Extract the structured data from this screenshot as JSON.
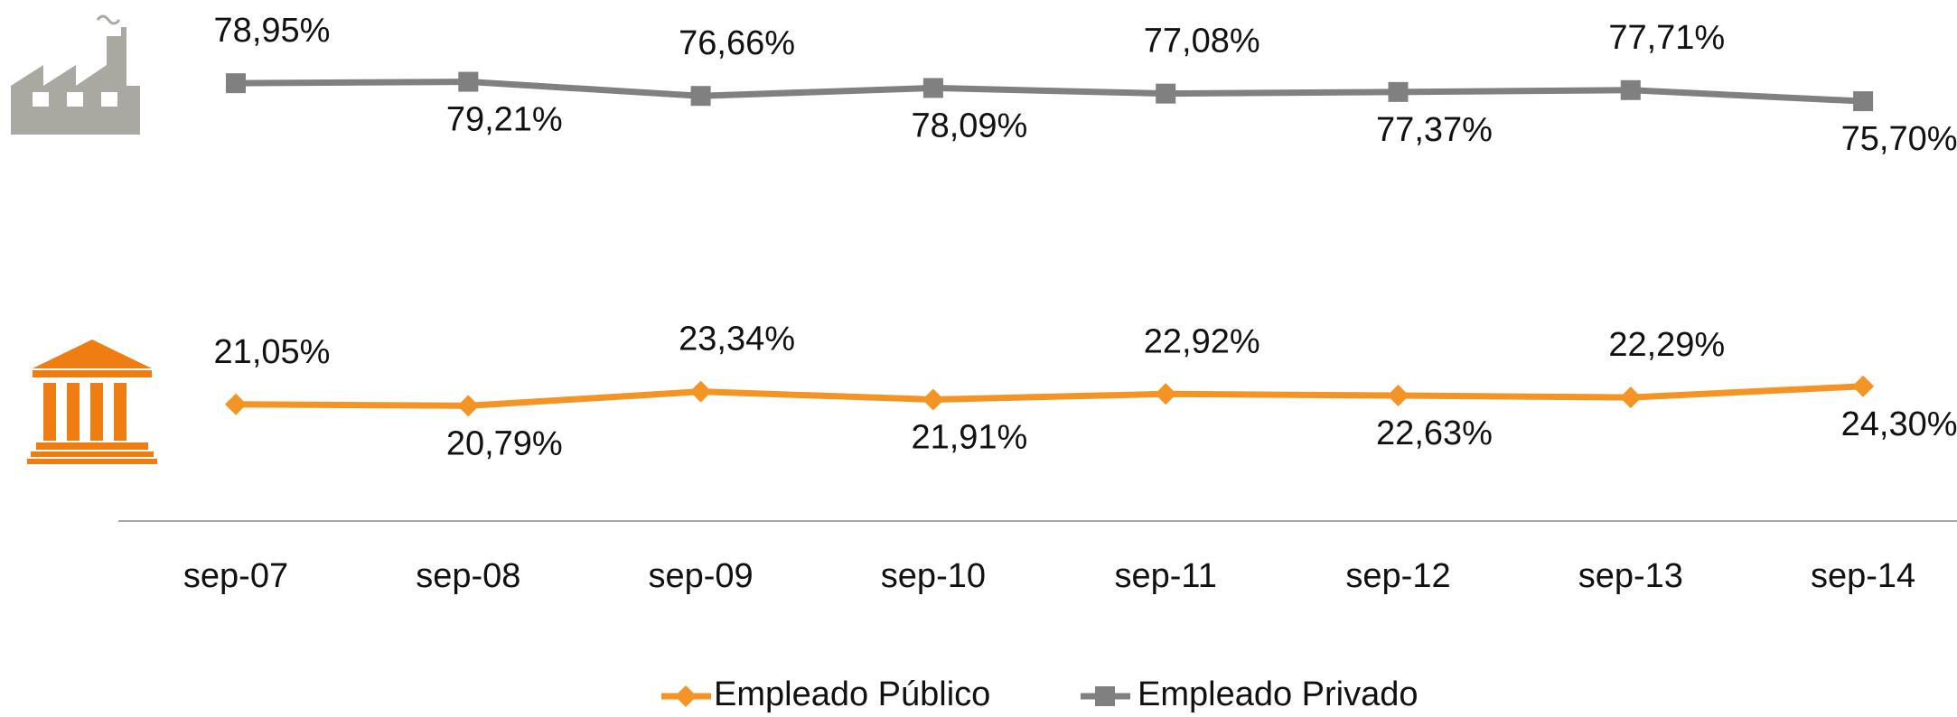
{
  "chart_data": {
    "type": "line",
    "categories": [
      "sep-07",
      "sep-08",
      "sep-09",
      "sep-10",
      "sep-11",
      "sep-12",
      "sep-13",
      "sep-14"
    ],
    "series": [
      {
        "name": "Empleado Público",
        "color": "#f39425",
        "marker": "diamond",
        "values": [
          21.05,
          20.79,
          23.34,
          21.91,
          22.92,
          22.63,
          22.29,
          24.3
        ],
        "value_labels": [
          "21,05%",
          "20,79%",
          "23,34%",
          "21,91%",
          "22,92%",
          "22,63%",
          "22,29%",
          "24,30%"
        ]
      },
      {
        "name": "Empleado Privado",
        "color": "#808080",
        "marker": "square",
        "values": [
          78.95,
          79.21,
          76.66,
          78.09,
          77.08,
          77.37,
          77.71,
          75.7
        ],
        "value_labels": [
          "78,95%",
          "79,21%",
          "76,66%",
          "78,09%",
          "77,08%",
          "77,37%",
          "77,71%",
          "75,70%"
        ]
      }
    ],
    "ylim": [
      0,
      85
    ]
  }
}
